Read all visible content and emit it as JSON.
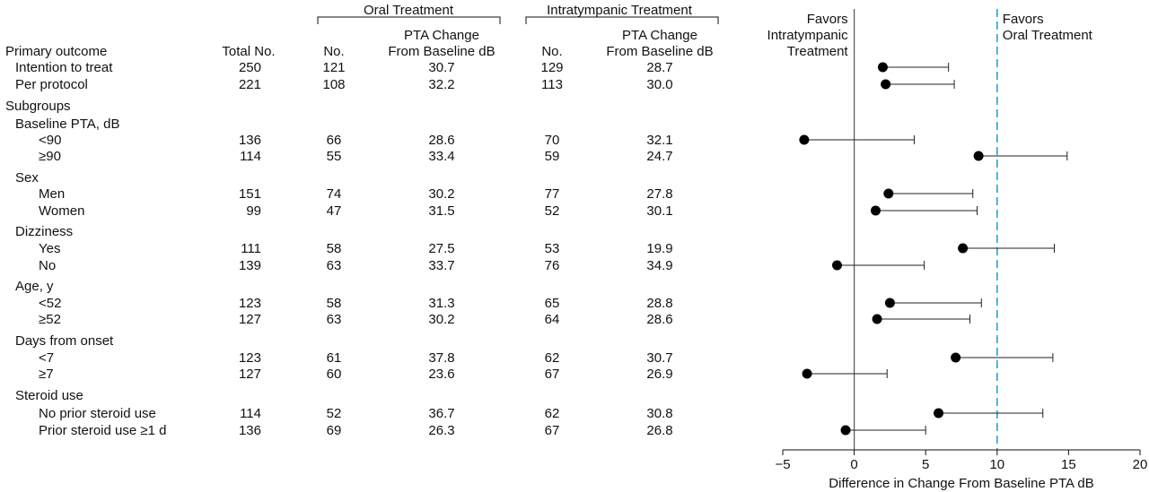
{
  "table": {
    "group_headers": {
      "oral": "Oral Treatment",
      "intratympanic": "Intratympanic Treatment"
    },
    "columns": {
      "total": "Total No.",
      "oral_n": "No.",
      "oral_pta_line1": "PTA Change",
      "oral_pta_line2": "From Baseline dB",
      "it_n": "No.",
      "it_pta_line1": "PTA Change",
      "it_pta_line2": "From Baseline dB"
    },
    "rows": [
      {
        "label": "Primary outcome",
        "kind": "section"
      },
      {
        "label": "Intention to treat",
        "kind": "row",
        "indent": 1,
        "total": "250",
        "oral_n": "121",
        "oral_pta": "30.7",
        "it_n": "129",
        "it_pta": "28.7"
      },
      {
        "label": "Per protocol",
        "kind": "row",
        "indent": 1,
        "total": "221",
        "oral_n": "108",
        "oral_pta": "32.2",
        "it_n": "113",
        "it_pta": "30.0"
      },
      {
        "label": "Subgroups",
        "kind": "section"
      },
      {
        "label": "Baseline PTA, dB",
        "kind": "group"
      },
      {
        "label": "<90",
        "kind": "row",
        "indent": 2,
        "total": "136",
        "oral_n": "66",
        "oral_pta": "28.6",
        "it_n": "70",
        "it_pta": "32.1"
      },
      {
        "label": "≥90",
        "kind": "row",
        "indent": 2,
        "total": "114",
        "oral_n": "55",
        "oral_pta": "33.4",
        "it_n": "59",
        "it_pta": "24.7"
      },
      {
        "label": "Sex",
        "kind": "group"
      },
      {
        "label": "Men",
        "kind": "row",
        "indent": 2,
        "total": "151",
        "oral_n": "74",
        "oral_pta": "30.2",
        "it_n": "77",
        "it_pta": "27.8"
      },
      {
        "label": "Women",
        "kind": "row",
        "indent": 2,
        "total": "99",
        "oral_n": "47",
        "oral_pta": "31.5",
        "it_n": "52",
        "it_pta": "30.1"
      },
      {
        "label": "Dizziness",
        "kind": "group"
      },
      {
        "label": "Yes",
        "kind": "row",
        "indent": 2,
        "total": "111",
        "oral_n": "58",
        "oral_pta": "27.5",
        "it_n": "53",
        "it_pta": "19.9"
      },
      {
        "label": "No",
        "kind": "row",
        "indent": 2,
        "total": "139",
        "oral_n": "63",
        "oral_pta": "33.7",
        "it_n": "76",
        "it_pta": "34.9"
      },
      {
        "label": "Age, y",
        "kind": "group"
      },
      {
        "label": "<52",
        "kind": "row",
        "indent": 2,
        "total": "123",
        "oral_n": "58",
        "oral_pta": "31.3",
        "it_n": "65",
        "it_pta": "28.8"
      },
      {
        "label": "≥52",
        "kind": "row",
        "indent": 2,
        "total": "127",
        "oral_n": "63",
        "oral_pta": "30.2",
        "it_n": "64",
        "it_pta": "28.6"
      },
      {
        "label": "Days from onset",
        "kind": "group"
      },
      {
        "label": "<7",
        "kind": "row",
        "indent": 2,
        "total": "123",
        "oral_n": "61",
        "oral_pta": "37.8",
        "it_n": "62",
        "it_pta": "30.7"
      },
      {
        "label": "≥7",
        "kind": "row",
        "indent": 2,
        "total": "127",
        "oral_n": "60",
        "oral_pta": "23.6",
        "it_n": "67",
        "it_pta": "26.9"
      },
      {
        "label": "Steroid use",
        "kind": "group"
      },
      {
        "label": "No prior steroid use",
        "kind": "row",
        "indent": 2,
        "total": "114",
        "oral_n": "52",
        "oral_pta": "36.7",
        "it_n": "62",
        "it_pta": "30.8"
      },
      {
        "label": "Prior steroid use ≥1 d",
        "kind": "row",
        "indent": 2,
        "total": "136",
        "oral_n": "69",
        "oral_pta": "26.3",
        "it_n": "67",
        "it_pta": "26.8"
      }
    ]
  },
  "chart_data": {
    "type": "scatter",
    "xlabel": "Difference in Change From Baseline PTA dB",
    "xlim": [
      -5,
      20
    ],
    "xticks": [
      -5,
      0,
      5,
      10,
      15,
      20
    ],
    "reference_line": 0,
    "margin_line": 10,
    "margin_color": "#2aa3c9",
    "favors_left": [
      "Favors",
      "Intratympanic",
      "Treatment"
    ],
    "favors_right": [
      "Favors",
      "Oral Treatment"
    ],
    "points": [
      {
        "label": "Intention to treat",
        "est": 2.0,
        "lo": 2.0,
        "hi": 6.6
      },
      {
        "label": "Per protocol",
        "est": 2.2,
        "lo": 2.2,
        "hi": 7.0
      },
      {
        "label": "<90",
        "est": -3.5,
        "lo": -3.5,
        "hi": 4.2
      },
      {
        "label": "≥90",
        "est": 8.7,
        "lo": 8.7,
        "hi": 14.9
      },
      {
        "label": "Men",
        "est": 2.4,
        "lo": 2.4,
        "hi": 8.3
      },
      {
        "label": "Women",
        "est": 1.5,
        "lo": 1.5,
        "hi": 8.6
      },
      {
        "label": "Yes",
        "est": 7.6,
        "lo": 7.6,
        "hi": 14.0
      },
      {
        "label": "No",
        "est": -1.2,
        "lo": -1.2,
        "hi": 4.9
      },
      {
        "label": "<52",
        "est": 2.5,
        "lo": 2.5,
        "hi": 8.9
      },
      {
        "label": "≥52",
        "est": 1.6,
        "lo": 1.6,
        "hi": 8.1
      },
      {
        "label": "<7",
        "est": 7.1,
        "lo": 7.1,
        "hi": 13.9
      },
      {
        "label": "≥7",
        "est": -3.3,
        "lo": -3.3,
        "hi": 2.3
      },
      {
        "label": "No prior steroid use",
        "est": 5.9,
        "lo": 5.9,
        "hi": 13.2
      },
      {
        "label": "Prior steroid use ≥1 d",
        "est": -0.6,
        "lo": -0.6,
        "hi": 5.0
      }
    ]
  }
}
